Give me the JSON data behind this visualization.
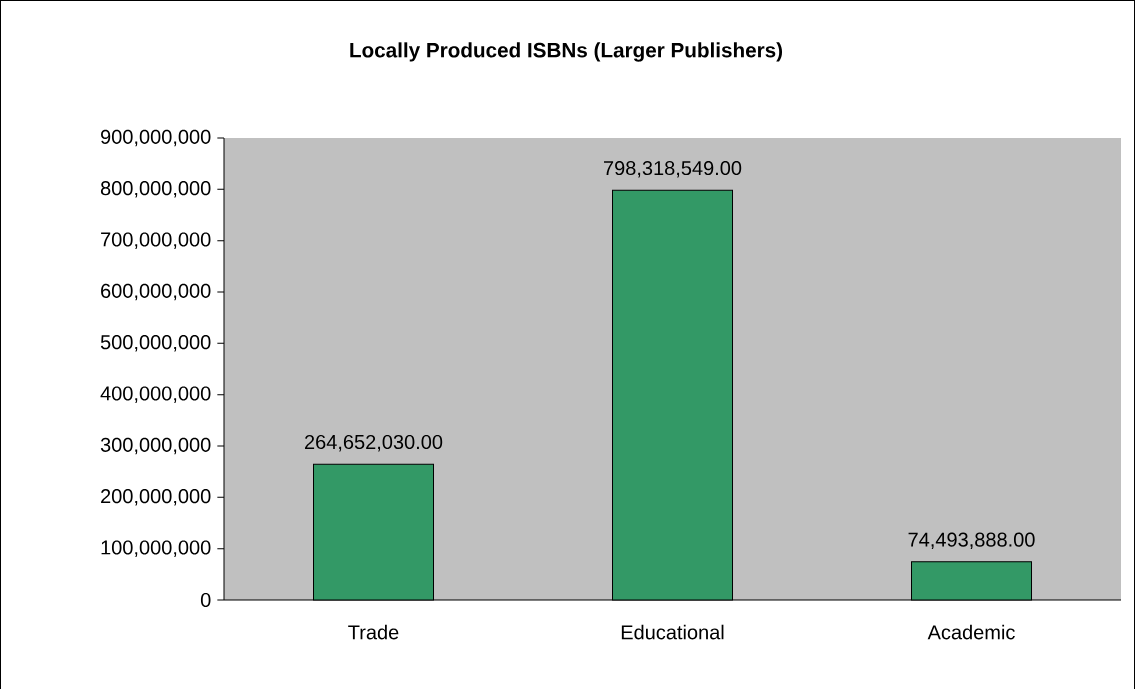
{
  "chart_data": {
    "type": "bar",
    "title": "Locally Produced ISBNs (Larger Publishers)",
    "categories": [
      "Trade",
      "Educational",
      "Academic"
    ],
    "values": [
      264652030,
      798318549,
      74493888
    ],
    "value_labels": [
      "264,652,030.00",
      "798,318,549.00",
      "74,493,888.00"
    ],
    "color": "#339966",
    "ylim": [
      0,
      900000000
    ],
    "yticks": [
      0,
      {
        "value": 100000000,
        "label": "100,000,000"
      },
      {
        "value": 200000000,
        "label": "200,000,000"
      },
      {
        "value": 300000000,
        "label": "300,000,000"
      },
      {
        "value": 400000000,
        "label": "400,000,000"
      },
      {
        "value": 500000000,
        "label": "500,000,000"
      },
      {
        "value": 600000000,
        "label": "600,000,000"
      },
      {
        "value": 700000000,
        "label": "700,000,000"
      },
      {
        "value": 800000000,
        "label": "800,000,000"
      },
      {
        "value": 900000000,
        "label": "900,000,000"
      }
    ]
  }
}
